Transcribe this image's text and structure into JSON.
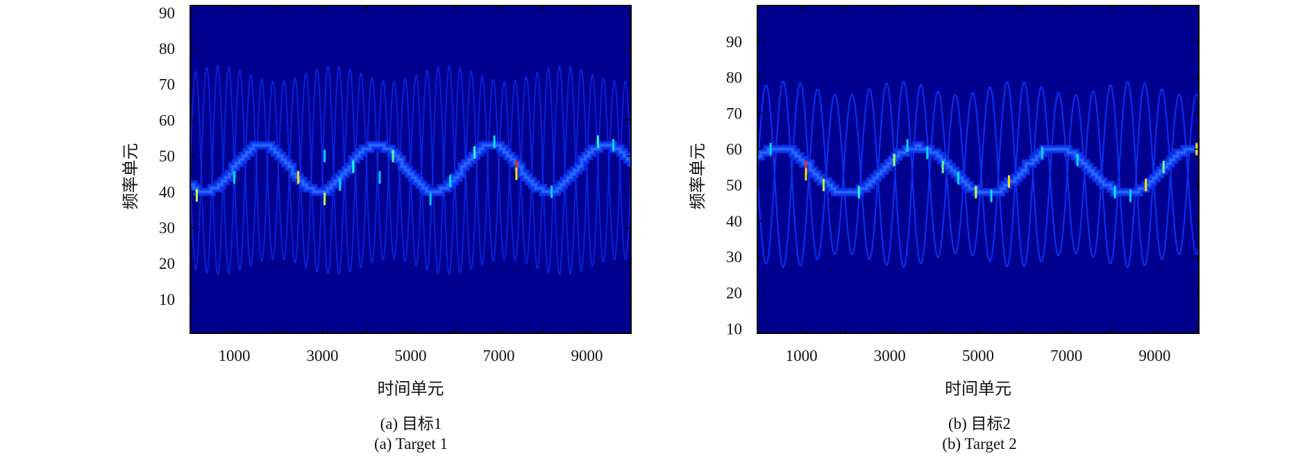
{
  "chart_data": [
    {
      "type": "heatmap",
      "subcaption_cn": "(a) 目标1",
      "subcaption_en": "(a) Target 1",
      "xlabel": "时间单元",
      "ylabel": "频率单元",
      "xlim": [
        0,
        10000
      ],
      "ylim": [
        0.5,
        92
      ],
      "xticks": [
        1000,
        3000,
        5000,
        7000,
        9000
      ],
      "xminor": [
        2000,
        4000,
        6000,
        8000
      ],
      "yticks": [
        10,
        20,
        30,
        40,
        50,
        60,
        70,
        80,
        90
      ],
      "grid": false,
      "colormap": "jet",
      "background_color": "#00008f",
      "main_ridge": {
        "center": 46.5,
        "amplitude": 6.5,
        "period": 2600,
        "peak_time": 1600,
        "color": "#1a4cff"
      },
      "sidebands": {
        "center": 46,
        "amplitude": 27,
        "period": 500,
        "color": "#0b2cf0"
      },
      "hotspots": [
        {
          "t": 150,
          "f": 39,
          "color": "#c8ff37"
        },
        {
          "t": 1000,
          "f": 44,
          "color": "#00d8ff"
        },
        {
          "t": 2450,
          "f": 44,
          "color": "#ffe000"
        },
        {
          "t": 3050,
          "f": 38,
          "color": "#d0ff30"
        },
        {
          "t": 3050,
          "f": 50,
          "color": "#00d8ff"
        },
        {
          "t": 3400,
          "f": 42,
          "color": "#00e0ff"
        },
        {
          "t": 3700,
          "f": 47,
          "color": "#20ffe0"
        },
        {
          "t": 4300,
          "f": 44,
          "color": "#00d0ff"
        },
        {
          "t": 4600,
          "f": 50,
          "color": "#40ffb0"
        },
        {
          "t": 5450,
          "f": 38,
          "color": "#00c8ff"
        },
        {
          "t": 5900,
          "f": 43,
          "color": "#00e0ff"
        },
        {
          "t": 6450,
          "f": 51,
          "color": "#30ffd0"
        },
        {
          "t": 6900,
          "f": 54,
          "color": "#00e8ff"
        },
        {
          "t": 7400,
          "f": 47,
          "color": "#ff2000"
        },
        {
          "t": 7400,
          "f": 45,
          "color": "#ffe000"
        },
        {
          "t": 8200,
          "f": 40,
          "color": "#00d8ff"
        },
        {
          "t": 9250,
          "f": 54,
          "color": "#20ffd0"
        },
        {
          "t": 9600,
          "f": 53,
          "color": "#00d8ff"
        }
      ]
    },
    {
      "type": "heatmap",
      "subcaption_cn": "(b) 目标2",
      "subcaption_en": "(b) Target 2",
      "xlabel": "时间单元",
      "ylabel": "频率单元",
      "xlim": [
        0,
        10000
      ],
      "ylim": [
        8.7,
        100
      ],
      "xticks": [
        1000,
        3000,
        5000,
        7000,
        9000
      ],
      "xminor": [
        2000,
        4000,
        6000,
        8000
      ],
      "yticks": [
        10,
        20,
        30,
        40,
        50,
        60,
        70,
        80,
        90
      ],
      "grid": false,
      "colormap": "jet",
      "background_color": "#00008f",
      "main_ridge": {
        "center": 54,
        "amplitude": 6.5,
        "period": 3150,
        "peak_time": 450,
        "color": "#1a4cff"
      },
      "sidebands": {
        "center": 53,
        "amplitude": 24,
        "period": 780,
        "color": "#0b30f5"
      },
      "hotspots": [
        {
          "t": 300,
          "f": 60,
          "color": "#00d8ff"
        },
        {
          "t": 1100,
          "f": 55,
          "color": "#ff3000"
        },
        {
          "t": 1100,
          "f": 53,
          "color": "#ffe000"
        },
        {
          "t": 1500,
          "f": 50,
          "color": "#c0ff40"
        },
        {
          "t": 2300,
          "f": 48,
          "color": "#30ffc0"
        },
        {
          "t": 3100,
          "f": 57,
          "color": "#a0ff60"
        },
        {
          "t": 3400,
          "f": 61,
          "color": "#00e0ff"
        },
        {
          "t": 3850,
          "f": 59,
          "color": "#00e0ff"
        },
        {
          "t": 4200,
          "f": 55,
          "color": "#60ffa0"
        },
        {
          "t": 4550,
          "f": 52,
          "color": "#00e8ff"
        },
        {
          "t": 4950,
          "f": 48,
          "color": "#c0ff40"
        },
        {
          "t": 5300,
          "f": 47,
          "color": "#00e0ff"
        },
        {
          "t": 5700,
          "f": 51,
          "color": "#ffe000"
        },
        {
          "t": 6450,
          "f": 59,
          "color": "#00d8ff"
        },
        {
          "t": 7250,
          "f": 57,
          "color": "#00e0ff"
        },
        {
          "t": 8100,
          "f": 48,
          "color": "#00f0ff"
        },
        {
          "t": 8450,
          "f": 47,
          "color": "#00d8ff"
        },
        {
          "t": 8800,
          "f": 50,
          "color": "#ffe000"
        },
        {
          "t": 9200,
          "f": 55,
          "color": "#80ff80"
        },
        {
          "t": 9950,
          "f": 60,
          "color": "#ffe000"
        }
      ]
    }
  ]
}
